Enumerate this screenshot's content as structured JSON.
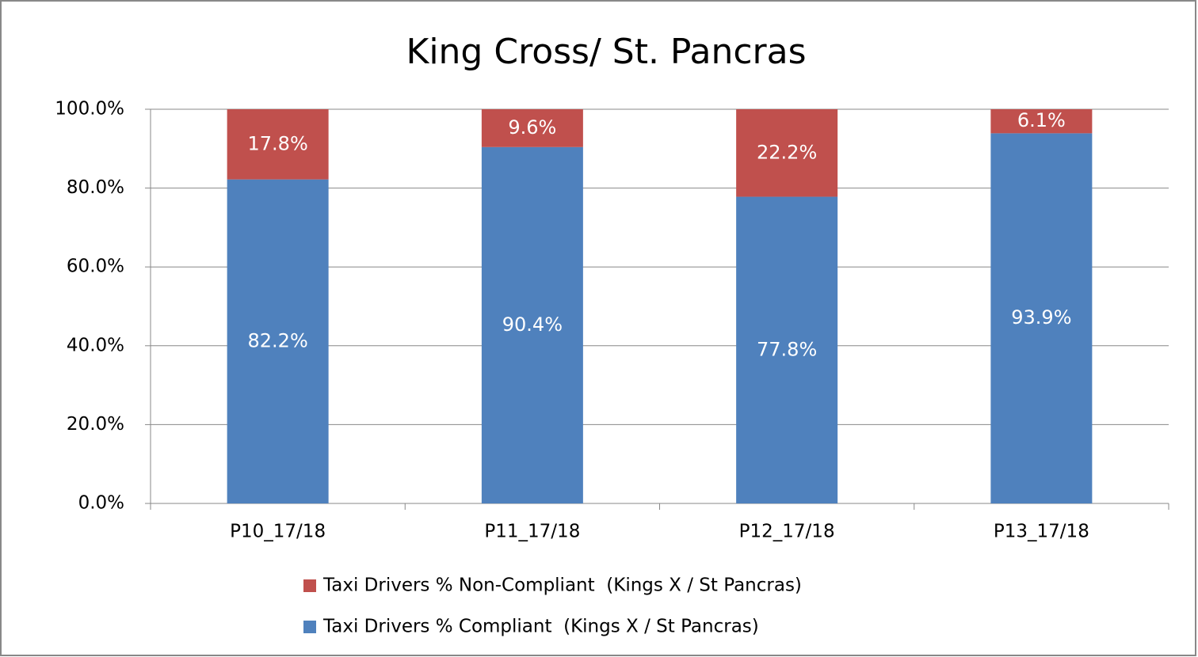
{
  "chart_data": {
    "type": "stacked_bar",
    "title": "King Cross/ St. Pancras",
    "categories": [
      "P10_17/18",
      "P11_17/18",
      "P12_17/18",
      "P13_17/18"
    ],
    "series": [
      {
        "name": "Taxi Drivers % Non-Compliant  (Kings X / St Pancras)",
        "color": "#c0504d",
        "values": [
          17.8,
          9.6,
          22.2,
          6.1
        ],
        "value_labels": [
          "17.8%",
          "9.6%",
          "22.2%",
          "6.1%"
        ]
      },
      {
        "name": "Taxi Drivers % Compliant  (Kings X / St Pancras)",
        "color": "#4f81bd",
        "values": [
          82.2,
          90.4,
          77.8,
          93.9
        ],
        "value_labels": [
          "82.2%",
          "90.4%",
          "77.8%",
          "93.9%"
        ]
      }
    ],
    "ylim": [
      0,
      100
    ],
    "yticks": [
      {
        "value": 0,
        "label": "0.0%"
      },
      {
        "value": 20,
        "label": "20.0%"
      },
      {
        "value": 40,
        "label": "40.0%"
      },
      {
        "value": 60,
        "label": "60.0%"
      },
      {
        "value": 80,
        "label": "80.0%"
      },
      {
        "value": 100,
        "label": "100.0%"
      }
    ],
    "grid": true,
    "legend": "bottom"
  }
}
